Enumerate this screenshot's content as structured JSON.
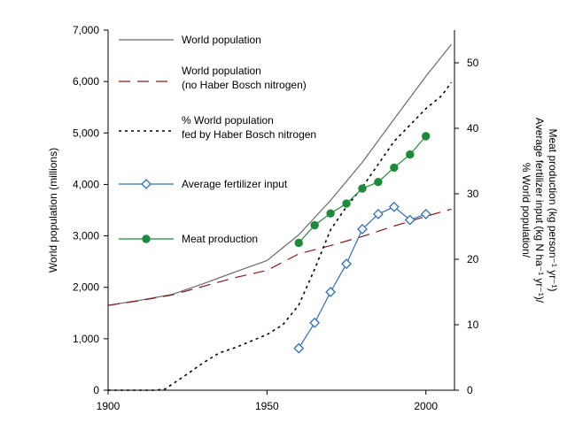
{
  "chart_data": {
    "type": "line",
    "xlabel": "",
    "ylabel_left": "World population (millions)",
    "ylabel_right": [
      "% World population/",
      "Average fertilizer input (kg N ha⁻¹ yr⁻¹)/",
      "Meat production (kg person⁻¹ yr⁻¹)"
    ],
    "xlim": [
      1900,
      2009
    ],
    "ylim_left": [
      0,
      7000
    ],
    "ylim_right": [
      0,
      55
    ],
    "x_ticks": [
      1900,
      1950,
      2000
    ],
    "y_ticks_left": [
      0,
      1000,
      2000,
      3000,
      4000,
      5000,
      6000,
      7000
    ],
    "y_tick_labels_left": [
      "0",
      "1,000",
      "2,000",
      "3,000",
      "4,000",
      "5,000",
      "6,000",
      "7,000"
    ],
    "y_ticks_right": [
      0,
      10,
      20,
      30,
      40,
      50
    ],
    "y_tick_labels_right": [
      "0",
      "10",
      "20",
      "30",
      "40",
      "50"
    ],
    "series": [
      {
        "name": "World population",
        "axis": "left",
        "style": "solid",
        "color": "#6b6b6b",
        "marker": "none",
        "x": [
          1900,
          1910,
          1920,
          1930,
          1940,
          1950,
          1960,
          1970,
          1980,
          1990,
          2000,
          2008
        ],
        "y": [
          1650,
          1750,
          1860,
          2070,
          2300,
          2520,
          3020,
          3690,
          4430,
          5270,
          6100,
          6720
        ]
      },
      {
        "name": "World population (no Haber Bosch nitrogen)",
        "axis": "left",
        "style": "dashed",
        "color": "#8b1a1a",
        "marker": "none",
        "x": [
          1900,
          1910,
          1920,
          1930,
          1940,
          1950,
          1960,
          1970,
          1980,
          1990,
          2000,
          2008
        ],
        "y": [
          1650,
          1740,
          1850,
          2020,
          2190,
          2330,
          2650,
          2810,
          2990,
          3190,
          3380,
          3520
        ]
      },
      {
        "name": "% World population fed by Haber Bosch nitrogen",
        "axis": "right",
        "style": "dotted",
        "color": "#000000",
        "marker": "none",
        "x": [
          1900,
          1910,
          1915,
          1918,
          1925,
          1930,
          1935,
          1940,
          1945,
          1950,
          1955,
          1960,
          1965,
          1970,
          1975,
          1980,
          1985,
          1990,
          1995,
          2000,
          2005,
          2008
        ],
        "y": [
          0,
          0,
          0,
          0.2,
          2.5,
          4.2,
          5.7,
          6.5,
          7.5,
          8.5,
          10,
          13,
          18.5,
          24.5,
          28,
          31,
          34.5,
          38,
          40.5,
          43,
          45,
          47
        ]
      },
      {
        "name": "Average fertilizer input",
        "axis": "right",
        "style": "solid",
        "color": "#2e6fb4",
        "marker": "diamond",
        "x": [
          1960,
          1965,
          1970,
          1975,
          1980,
          1985,
          1990,
          1995,
          2000
        ],
        "y": [
          6.4,
          10.3,
          15,
          19.3,
          24.6,
          26.9,
          28,
          26,
          26.9
        ]
      },
      {
        "name": "Meat production",
        "axis": "right",
        "style": "solid",
        "color": "#1f8a3c",
        "marker": "circle",
        "x": [
          1960,
          1965,
          1970,
          1975,
          1980,
          1985,
          1990,
          1995,
          2000
        ],
        "y": [
          22.5,
          25.2,
          27,
          28.5,
          30.8,
          31.8,
          34,
          36,
          38.8
        ]
      }
    ],
    "legend": {
      "placement": "top-left",
      "items": [
        {
          "series": 0,
          "lines": [
            "World population"
          ]
        },
        {
          "series": 1,
          "lines": [
            "World population",
            "(no Haber Bosch nitrogen)"
          ]
        },
        {
          "series": 2,
          "lines": [
            "% World population",
            "fed by Haber Bosch nitrogen"
          ]
        },
        {
          "series": 3,
          "lines": [
            "Average fertilizer input"
          ]
        },
        {
          "series": 4,
          "lines": [
            "Meat production"
          ]
        }
      ]
    },
    "grid": false
  }
}
